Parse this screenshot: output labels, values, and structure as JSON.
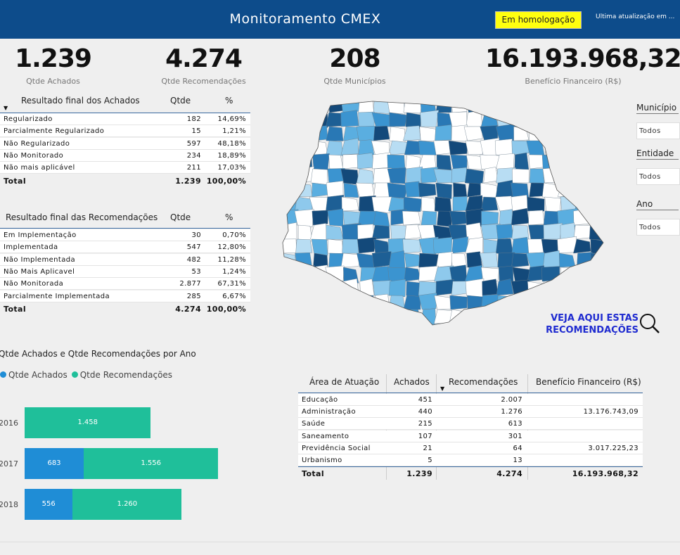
{
  "header": {
    "title": "Monitoramento CMEX",
    "badge": "Em homologação",
    "updated": "Última atualização em ..."
  },
  "kpis": [
    {
      "value": "1.239",
      "label": "Qtde Achados"
    },
    {
      "value": "4.274",
      "label": "Qtde Recomendações"
    },
    {
      "value": "208",
      "label": "Qtde Municípios"
    },
    {
      "value": "16.193.968,32",
      "label": "Benefício Financeiro (R$)"
    }
  ],
  "achados": {
    "headers": [
      "Resultado final dos Achados",
      "Qtde",
      "%"
    ],
    "rows": [
      [
        "Regularizado",
        "182",
        "14,69%"
      ],
      [
        "Parcialmente Regularizado",
        "15",
        "1,21%"
      ],
      [
        "Não Regularizado",
        "597",
        "48,18%"
      ],
      [
        "Não Monitorado",
        "234",
        "18,89%"
      ],
      [
        "Não mais aplicável",
        "211",
        "17,03%"
      ]
    ],
    "total": [
      "Total",
      "1.239",
      "100,00%"
    ]
  },
  "recomendacoes": {
    "headers": [
      "Resultado final das Recomendações",
      "Qtde",
      "%"
    ],
    "rows": [
      [
        "Em Implementação",
        "30",
        "0,70%"
      ],
      [
        "Implementada",
        "547",
        "12,80%"
      ],
      [
        "Não Implementada",
        "482",
        "11,28%"
      ],
      [
        "Não Mais Aplicavel",
        "53",
        "1,24%"
      ],
      [
        "Não Monitorada",
        "2.877",
        "67,31%"
      ],
      [
        "Parcialmente Implementada",
        "285",
        "6,67%"
      ]
    ],
    "total": [
      "Total",
      "4.274",
      "100,00%"
    ]
  },
  "slicers": [
    {
      "title": "Município",
      "value": "Todos"
    },
    {
      "title": "Entidade",
      "value": "Todos"
    },
    {
      "title": "Ano",
      "value": "Todos"
    }
  ],
  "veja": {
    "line1": "VEJA AQUI ESTAS",
    "line2": "RECOMENDAÇÕES"
  },
  "chart_data": {
    "type": "bar",
    "title": "Qtde Achados e Qtde Recomendações por Ano",
    "categories": [
      "2016",
      "2017",
      "2018"
    ],
    "series": [
      {
        "name": "Qtde Achados",
        "values": [
          null,
          683,
          556
        ],
        "labels": [
          "",
          "683",
          "556"
        ],
        "color": "#1f8dd6"
      },
      {
        "name": "Qtde Recomendações",
        "values": [
          1458,
          1556,
          1260
        ],
        "labels": [
          "1.458",
          "1.556",
          "1.260"
        ],
        "color": "#1fbf9a"
      }
    ],
    "stacked": true,
    "orientation": "horizontal",
    "legend": "top-left"
  },
  "area": {
    "headers": [
      "Área de Atuação",
      "Achados",
      "Recomendações",
      "Benefício Financeiro (R$)"
    ],
    "rows": [
      [
        "Educação",
        "451",
        "2.007",
        ""
      ],
      [
        "Administração",
        "440",
        "1.276",
        "13.176.743,09"
      ],
      [
        "Saúde",
        "215",
        "613",
        ""
      ],
      [
        "Saneamento",
        "107",
        "301",
        ""
      ],
      [
        "Previdência Social",
        "21",
        "64",
        "3.017.225,23"
      ],
      [
        "Urbanismo",
        "5",
        "13",
        ""
      ]
    ],
    "total": [
      "Total",
      "1.239",
      "4.274",
      "16.193.968,32"
    ]
  },
  "colors": {
    "header": "#0d4c8b",
    "badge": "#ffff0f",
    "achados": "#1f8dd6",
    "recomendacoes": "#1fbf9a",
    "link": "#1f2bd0"
  }
}
